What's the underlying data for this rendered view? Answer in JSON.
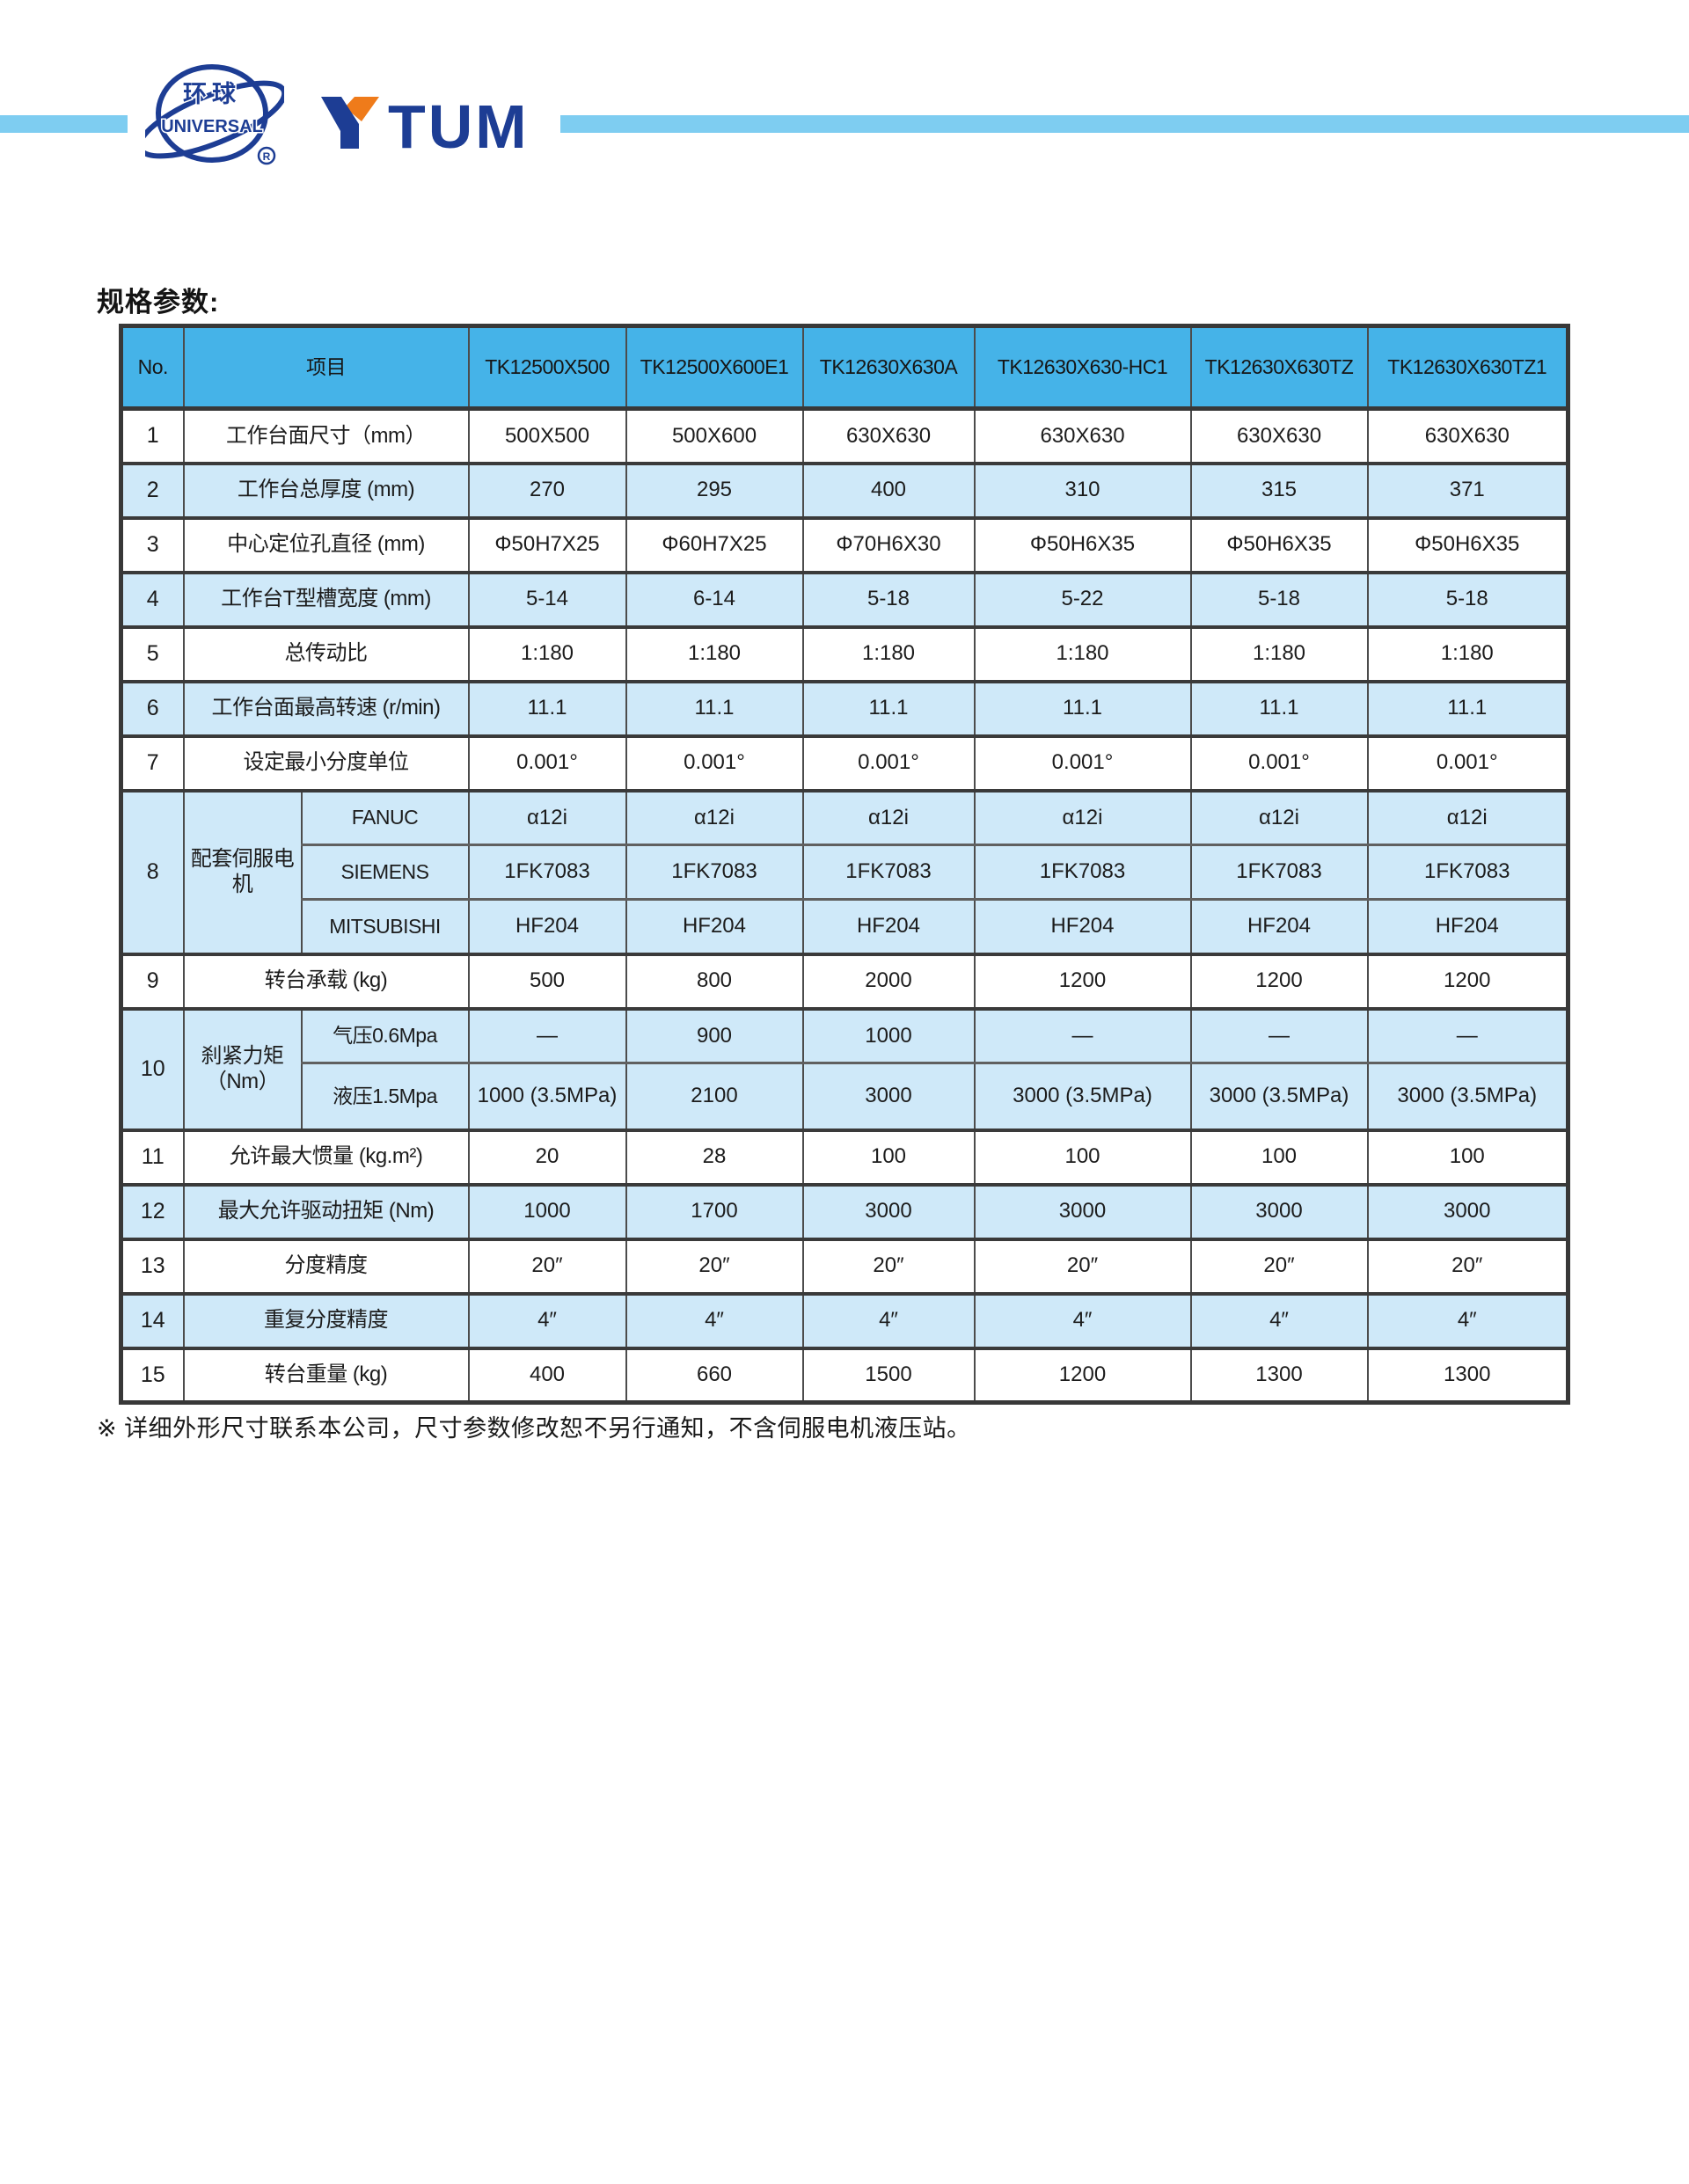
{
  "colors": {
    "header_blue": "#45b3e8",
    "row_blue": "#cfe9f9",
    "bar_blue": "#7ecdf1",
    "navy": "#1d3d94",
    "orange": "#ef7b1a",
    "border_dark": "#3a3a3a"
  },
  "logo": {
    "globe_cn": "环球",
    "globe_en": "UNIVERSAL",
    "registered": "®",
    "wordmark_tail": "TUM"
  },
  "page_title": "规格参数:",
  "table": {
    "header": {
      "no": "No.",
      "item": "项目",
      "models": [
        "TK12500X500",
        "TK12500X600E1",
        "TK12630X630A",
        "TK12630X630-HC1",
        "TK12630X630TZ",
        "TK12630X630TZ1"
      ]
    },
    "rows": [
      {
        "no": "1",
        "shade": false,
        "label": "工作台面尺寸（mm）",
        "values": [
          "500X500",
          "500X600",
          "630X630",
          "630X630",
          "630X630",
          "630X630"
        ]
      },
      {
        "no": "2",
        "shade": true,
        "label": "工作台总厚度 (mm)",
        "values": [
          "270",
          "295",
          "400",
          "310",
          "315",
          "371"
        ]
      },
      {
        "no": "3",
        "shade": false,
        "label": "中心定位孔直径 (mm)",
        "values": [
          "Φ50H7X25",
          "Φ60H7X25",
          "Φ70H6X30",
          "Φ50H6X35",
          "Φ50H6X35",
          "Φ50H6X35"
        ]
      },
      {
        "no": "4",
        "shade": true,
        "label": "工作台T型槽宽度 (mm)",
        "values": [
          "5-14",
          "6-14",
          "5-18",
          "5-22",
          "5-18",
          "5-18"
        ]
      },
      {
        "no": "5",
        "shade": false,
        "label": "总传动比",
        "values": [
          "1:180",
          "1:180",
          "1:180",
          "1:180",
          "1:180",
          "1:180"
        ]
      },
      {
        "no": "6",
        "shade": true,
        "label": "工作台面最高转速 (r/min)",
        "values": [
          "11.1",
          "11.1",
          "11.1",
          "11.1",
          "11.1",
          "11.1"
        ]
      },
      {
        "no": "7",
        "shade": false,
        "label": "设定最小分度单位",
        "values": [
          "0.001°",
          "0.001°",
          "0.001°",
          "0.001°",
          "0.001°",
          "0.001°"
        ]
      },
      {
        "no": "8",
        "shade": true,
        "label": "配套伺服电机",
        "subs": [
          {
            "label": "FANUC",
            "values": [
              "α12i",
              "α12i",
              "α12i",
              "α12i",
              "α12i",
              "α12i"
            ]
          },
          {
            "label": "SIEMENS",
            "values": [
              "1FK7083",
              "1FK7083",
              "1FK7083",
              "1FK7083",
              "1FK7083",
              "1FK7083"
            ]
          },
          {
            "label": "MITSUBISHI",
            "values": [
              "HF204",
              "HF204",
              "HF204",
              "HF204",
              "HF204",
              "HF204"
            ]
          }
        ]
      },
      {
        "no": "9",
        "shade": false,
        "label": "转台承载 (kg)",
        "values": [
          "500",
          "800",
          "2000",
          "1200",
          "1200",
          "1200"
        ]
      },
      {
        "no": "10",
        "shade": true,
        "label": "刹紧力矩 （Nm）",
        "subs": [
          {
            "label": "气压0.6Mpa",
            "values": [
              "—",
              "900",
              "1000",
              "—",
              "—",
              "—"
            ]
          },
          {
            "label": "液压1.5Mpa",
            "tall": true,
            "values": [
              "1000 (3.5MPa)",
              "2100",
              "3000",
              "3000 (3.5MPa)",
              "3000 (3.5MPa)",
              "3000 (3.5MPa)"
            ]
          }
        ]
      },
      {
        "no": "11",
        "shade": false,
        "label": "允许最大惯量 (kg.m²)",
        "values": [
          "20",
          "28",
          "100",
          "100",
          "100",
          "100"
        ]
      },
      {
        "no": "12",
        "shade": true,
        "label": "最大允许驱动扭矩 (Nm)",
        "values": [
          "1000",
          "1700",
          "3000",
          "3000",
          "3000",
          "3000"
        ]
      },
      {
        "no": "13",
        "shade": false,
        "label": "分度精度",
        "values": [
          "20″",
          "20″",
          "20″",
          "20″",
          "20″",
          "20″"
        ]
      },
      {
        "no": "14",
        "shade": true,
        "label": "重复分度精度",
        "values": [
          "4″",
          "4″",
          "4″",
          "4″",
          "4″",
          "4″"
        ]
      },
      {
        "no": "15",
        "shade": false,
        "label": "转台重量 (kg)",
        "values": [
          "400",
          "660",
          "1500",
          "1200",
          "1300",
          "1300"
        ]
      }
    ]
  },
  "footnote": "※ 详细外形尺寸联系本公司，尺寸参数修改恕不另行通知，不含伺服电机液压站。"
}
